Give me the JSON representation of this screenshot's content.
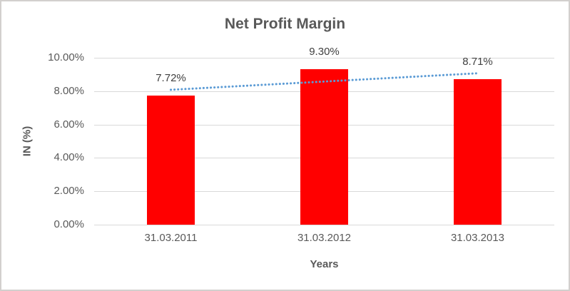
{
  "chart": {
    "title": "Net Profit Margin",
    "x_axis_title": "Years",
    "y_axis_title": "IN (%)"
  },
  "chart_data": {
    "type": "bar",
    "title": "Net Profit Margin",
    "xlabel": "Years",
    "ylabel": "IN (%)",
    "categories": [
      "31.03.2011",
      "31.03.2012",
      "31.03.2013"
    ],
    "values": [
      7.72,
      9.3,
      8.71
    ],
    "data_labels": [
      "7.72%",
      "9.30%",
      "8.71%"
    ],
    "y_ticks": [
      {
        "value": 0,
        "label": "0.00%"
      },
      {
        "value": 2,
        "label": "2.00%"
      },
      {
        "value": 4,
        "label": "4.00%"
      },
      {
        "value": 6,
        "label": "6.00%"
      },
      {
        "value": 8,
        "label": "8.00%"
      },
      {
        "value": 10,
        "label": "10.00%"
      }
    ],
    "ylim": [
      0,
      10
    ],
    "grid": true,
    "legend": "none",
    "bar_color": "#ff0000",
    "trendline": {
      "type": "linear",
      "style": "dotted",
      "color": "#5b9bd5"
    },
    "colors": {
      "title_text": "#595959",
      "axis_text": "#595959",
      "data_label_text": "#404040",
      "gridline": "#d9d9d9"
    }
  }
}
